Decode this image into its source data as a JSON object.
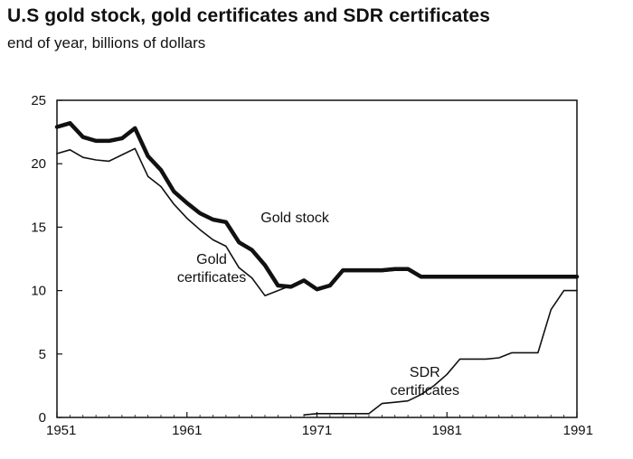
{
  "chart_data": {
    "type": "line",
    "title": "U.S gold stock, gold certificates and SDR certificates",
    "subtitle": "end of year, billions of dollars",
    "xlabel": "",
    "ylabel": "",
    "xlim": [
      1951,
      1991
    ],
    "ylim": [
      0,
      25
    ],
    "x_ticks": [
      1951,
      1961,
      1971,
      1981,
      1991
    ],
    "y_ticks": [
      0,
      5,
      10,
      15,
      20,
      25
    ],
    "grid": false,
    "legend": "none",
    "annotations": [
      {
        "series": "gold_stock",
        "lines": [
          "Gold stock"
        ]
      },
      {
        "series": "gold_certificates",
        "lines": [
          "Gold",
          "certificates"
        ]
      },
      {
        "series": "sdr_certificates",
        "lines": [
          "SDR",
          "certificates"
        ]
      }
    ],
    "series": [
      {
        "id": "gold_stock",
        "name": "Gold stock",
        "stroke_width": "thick",
        "x": [
          1951,
          1952,
          1953,
          1954,
          1955,
          1956,
          1957,
          1958,
          1959,
          1960,
          1961,
          1962,
          1963,
          1964,
          1965,
          1966,
          1967,
          1968,
          1969,
          1970,
          1971,
          1972,
          1973,
          1974,
          1975,
          1976,
          1977,
          1978,
          1979,
          1980,
          1981,
          1982,
          1983,
          1984,
          1985,
          1986,
          1987,
          1988,
          1989,
          1990,
          1991
        ],
        "y": [
          22.9,
          23.2,
          22.1,
          21.8,
          21.8,
          22.0,
          22.8,
          20.6,
          19.5,
          17.8,
          16.9,
          16.1,
          15.6,
          15.4,
          13.8,
          13.2,
          12.0,
          10.4,
          10.3,
          10.8,
          10.1,
          10.4,
          11.6,
          11.6,
          11.6,
          11.6,
          11.7,
          11.7,
          11.1,
          11.1,
          11.1,
          11.1,
          11.1,
          11.1,
          11.1,
          11.1,
          11.1,
          11.1,
          11.1,
          11.1,
          11.1
        ]
      },
      {
        "id": "gold_certificates",
        "name": "Gold certificates",
        "stroke_width": "thin",
        "x": [
          1951,
          1952,
          1953,
          1954,
          1955,
          1956,
          1957,
          1958,
          1959,
          1960,
          1961,
          1962,
          1963,
          1964,
          1965,
          1966,
          1967,
          1968,
          1969,
          1970,
          1971,
          1972,
          1973,
          1974,
          1975,
          1976,
          1977,
          1978,
          1979,
          1980,
          1981,
          1982,
          1983,
          1984,
          1985,
          1986,
          1987,
          1988,
          1989,
          1990,
          1991
        ],
        "y": [
          20.8,
          21.1,
          20.5,
          20.3,
          20.2,
          20.7,
          21.2,
          19.0,
          18.2,
          16.8,
          15.7,
          14.8,
          14.0,
          13.5,
          11.8,
          11.0,
          9.6,
          10.0,
          10.4,
          10.7,
          10.1,
          10.4,
          11.5,
          11.5,
          11.5,
          11.5,
          11.6,
          11.6,
          11.0,
          11.0,
          11.0,
          11.0,
          11.0,
          11.0,
          11.0,
          11.0,
          11.0,
          11.0,
          11.0,
          11.0,
          11.0
        ]
      },
      {
        "id": "sdr_certificates",
        "name": "SDR certificates",
        "stroke_width": "thin",
        "x": [
          1970,
          1971,
          1972,
          1973,
          1974,
          1975,
          1976,
          1977,
          1978,
          1979,
          1980,
          1981,
          1982,
          1983,
          1984,
          1985,
          1986,
          1987,
          1988,
          1989,
          1990,
          1991
        ],
        "y": [
          0.2,
          0.3,
          0.3,
          0.3,
          0.3,
          0.3,
          1.1,
          1.2,
          1.3,
          1.8,
          2.5,
          3.4,
          4.6,
          4.6,
          4.6,
          4.7,
          5.1,
          5.1,
          5.1,
          8.5,
          10.0,
          10.0
        ]
      }
    ]
  }
}
